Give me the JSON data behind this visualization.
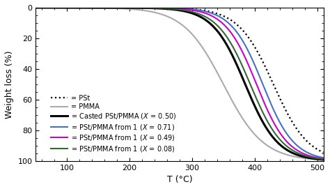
{
  "xlabel": "T (°C)",
  "ylabel": "Weight loss (%)",
  "xlim": [
    50,
    510
  ],
  "ylim": [
    100,
    0
  ],
  "xticks": [
    100,
    200,
    300,
    400,
    500
  ],
  "yticks": [
    0,
    20,
    40,
    60,
    80,
    100
  ],
  "curves": {
    "PSt": {
      "color": "#000000",
      "ls": ":",
      "lw": 1.6,
      "mid": 430,
      "k": 28
    },
    "PMMA": {
      "color": "#aaaaaa",
      "ls": "-",
      "lw": 1.5,
      "mid": 350,
      "k": 32
    },
    "Cast": {
      "color": "#000000",
      "ls": "-",
      "lw": 2.2,
      "mid": 385,
      "k": 26
    },
    "Blend071": {
      "color": "#4472C4",
      "ls": "-",
      "lw": 1.5,
      "mid": 413,
      "k": 25
    },
    "Blend049": {
      "color": "#CC00CC",
      "ls": "-",
      "lw": 1.5,
      "mid": 403,
      "k": 25
    },
    "Blend008": {
      "color": "#336633",
      "ls": "-",
      "lw": 1.5,
      "mid": 393,
      "k": 26
    }
  },
  "prefix_labels": {
    "PSt": "= PSt",
    "PMMA": "= PMMA",
    "Cast": "= Casted PSt/PMMA ($X$ = 0.50)",
    "Blend071": "= PSt/PMMA from 1 ($X$ = 0.71)",
    "Blend049": "= PSt/PMMA from 1 ($X$ = 0.49)",
    "Blend008": "= PSt/PMMA from 1 ($X$ = 0.08)"
  },
  "legend_fontsize": 7,
  "axis_fontsize": 9,
  "tick_fontsize": 8,
  "background_color": "#ffffff"
}
